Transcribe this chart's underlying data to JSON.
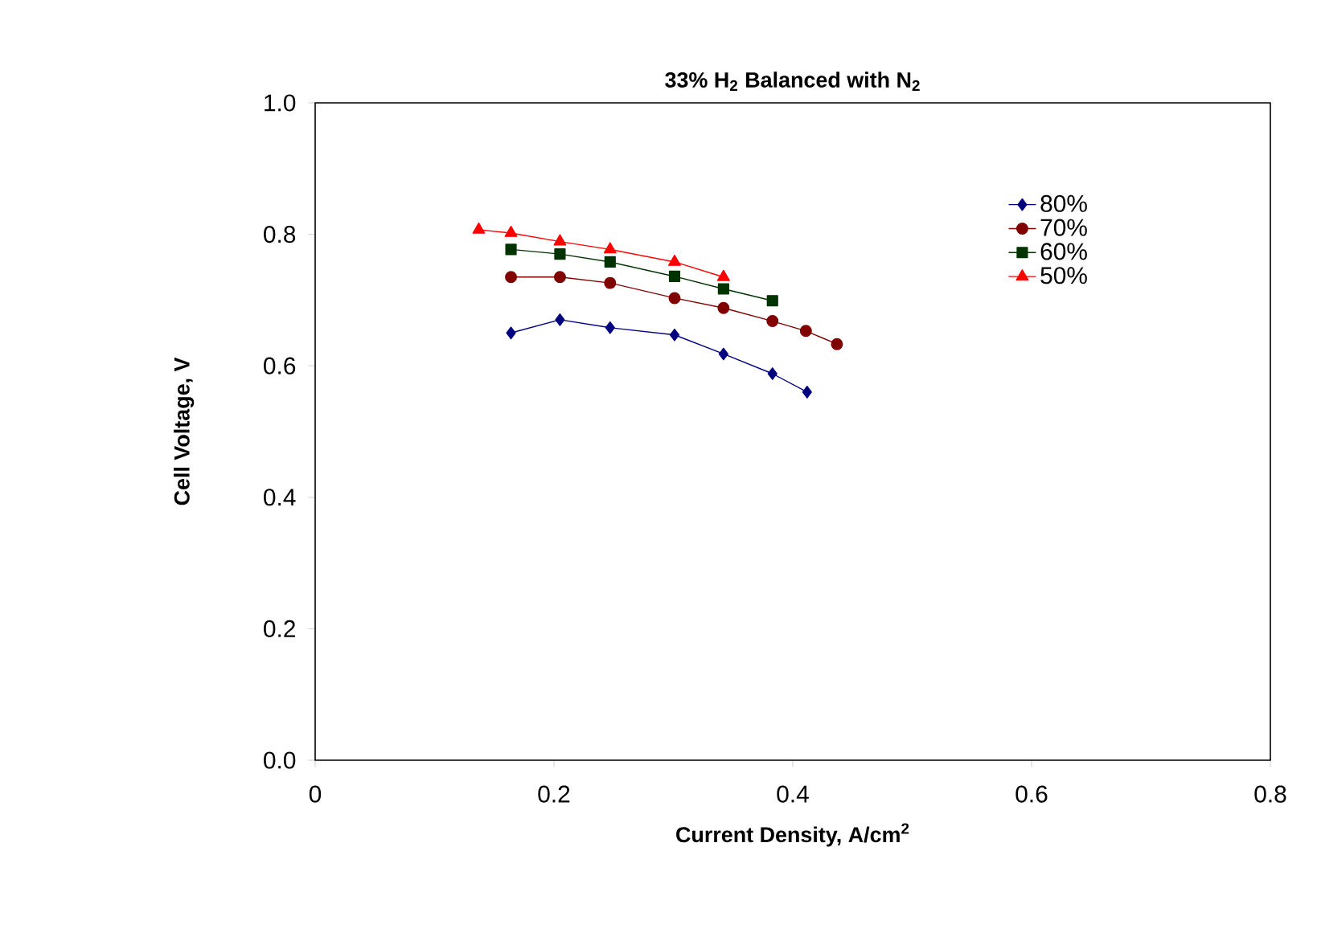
{
  "chart_data": {
    "type": "line",
    "title": "33% H$_{2}$ Balanced with N$_{2}$",
    "xlabel": "Current Density, A/cm$^{2}$",
    "ylabel": "Cell Voltage, V",
    "xlim": [
      0,
      0.8
    ],
    "ylim": [
      0,
      1.0
    ],
    "xticks": [
      0,
      0.2,
      0.4,
      0.6,
      0.8
    ],
    "yticks": [
      {
        "value": 0,
        "label": "0.0"
      },
      0.2,
      0.4,
      0.6,
      0.8,
      {
        "value": 1.0,
        "label": "1.0"
      }
    ],
    "grid": false,
    "legend": "top right",
    "line_style": "solid",
    "series": [
      {
        "name": "80%",
        "color": "#000080",
        "marker": "diamond",
        "x": [
          0.164,
          0.205,
          0.247,
          0.301,
          0.342,
          0.383,
          0.412
        ],
        "values": [
          0.65,
          0.67,
          0.658,
          0.647,
          0.618,
          0.588,
          0.56
        ]
      },
      {
        "name": "70%",
        "color": "#800000",
        "marker": "circle",
        "x": [
          0.164,
          0.205,
          0.247,
          0.301,
          0.342,
          0.383,
          0.411,
          0.437
        ],
        "values": [
          0.735,
          0.735,
          0.726,
          0.703,
          0.688,
          0.668,
          0.653,
          0.633
        ]
      },
      {
        "name": "60%",
        "color": "#003300",
        "marker": "square",
        "x": [
          0.164,
          0.205,
          0.247,
          0.301,
          0.342,
          0.383
        ],
        "values": [
          0.777,
          0.77,
          0.758,
          0.736,
          0.717,
          0.699
        ]
      },
      {
        "name": "50%",
        "color": "#ff0000",
        "marker": "triangle",
        "x": [
          0.137,
          0.164,
          0.205,
          0.247,
          0.301,
          0.342
        ],
        "values": [
          0.807,
          0.802,
          0.789,
          0.777,
          0.758,
          0.735
        ]
      }
    ]
  }
}
